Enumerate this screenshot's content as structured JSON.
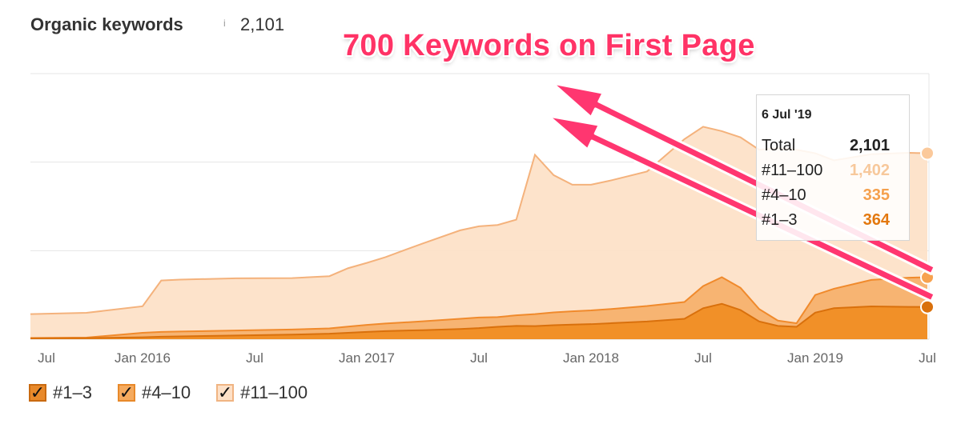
{
  "header": {
    "title": "Organic keywords",
    "info_icon": "i",
    "total": "2,101"
  },
  "headline": "700 Keywords on First Page",
  "tooltip": {
    "date": "6 Jul '19",
    "rows": [
      {
        "label": "Total",
        "value": "2,101",
        "color": "#222222"
      },
      {
        "label": "#11–100",
        "value": "1,402",
        "color": "#f7c89b"
      },
      {
        "label": "#4–10",
        "value": "335",
        "color": "#f5a04d"
      },
      {
        "label": "#1–3",
        "value": "364",
        "color": "#e3780f"
      }
    ]
  },
  "legend": [
    {
      "label": "#1–3",
      "check": "✓",
      "color": "#e8892a",
      "border": "#c96a10"
    },
    {
      "label": "#4–10",
      "check": "✓",
      "color": "#f5aa5e",
      "border": "#e8892a"
    },
    {
      "label": "#11–100",
      "check": "✓",
      "color": "#fde0c7",
      "border": "#f0b482"
    }
  ],
  "chart_data": {
    "type": "area",
    "stacked": true,
    "x_tick_labels": [
      "Jul",
      "Jan 2016",
      "Jul",
      "Jan 2017",
      "Jul",
      "Jan 2018",
      "Jul",
      "Jan 2019",
      "Jul"
    ],
    "x": [
      "2015-07",
      "2015-10",
      "2016-01",
      "2016-02",
      "2016-03",
      "2016-06",
      "2016-09",
      "2016-11",
      "2016-12",
      "2017-01",
      "2017-02",
      "2017-04",
      "2017-06",
      "2017-07",
      "2017-08",
      "2017-09",
      "2017-10",
      "2017-11",
      "2017-12",
      "2018-01",
      "2018-02",
      "2018-04",
      "2018-06",
      "2018-07",
      "2018-08",
      "2018-09",
      "2018-10",
      "2018-11",
      "2018-12",
      "2019-01",
      "2019-02",
      "2019-04",
      "2019-06",
      "2019-07"
    ],
    "series": [
      {
        "name": "#1–3",
        "color": "#f08a1c",
        "values": [
          10,
          12,
          22,
          28,
          32,
          42,
          52,
          62,
          72,
          82,
          92,
          102,
          115,
          125,
          140,
          150,
          148,
          158,
          165,
          170,
          180,
          200,
          230,
          350,
          400,
          330,
          200,
          150,
          140,
          300,
          350,
          370,
          365,
          364
        ]
      },
      {
        "name": "#4–10",
        "color": "#f7b06a",
        "values": [
          4,
          6,
          50,
          55,
          55,
          56,
          58,
          60,
          70,
          80,
          85,
          100,
          115,
          120,
          110,
          120,
          135,
          145,
          150,
          155,
          160,
          175,
          190,
          250,
          300,
          250,
          140,
          60,
          40,
          200,
          220,
          300,
          330,
          335
        ]
      },
      {
        "name": "#11–100",
        "color": "#fde1c8",
        "values": [
          270,
          280,
          300,
          580,
          586,
          590,
          580,
          590,
          660,
          700,
          750,
          880,
          1000,
          1030,
          1040,
          1080,
          1800,
          1550,
          1430,
          1420,
          1450,
          1520,
          1840,
          1800,
          1650,
          1700,
          1800,
          1950,
          1960,
          1600,
          1450,
          1420,
          1410,
          1402
        ]
      }
    ],
    "ylim": [
      0,
      3000
    ],
    "grid": true,
    "legend_position": "bottom-left"
  }
}
